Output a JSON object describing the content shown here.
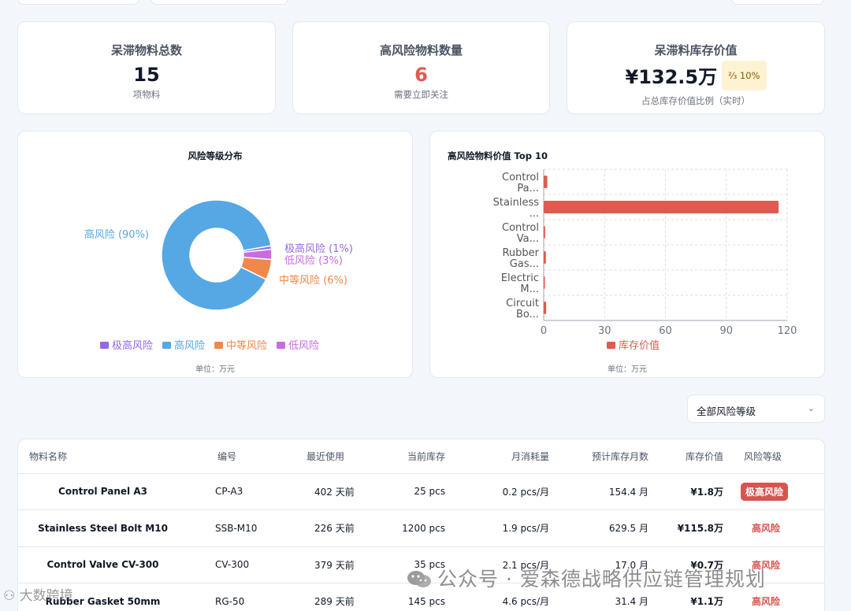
{
  "stats": [
    {
      "title": "呆滞物料总数",
      "value": "15",
      "sub": "项物料"
    },
    {
      "title": "高风险物料数量",
      "value": "6",
      "sub": "需要立即关注"
    },
    {
      "title": "呆滞料库存价值",
      "value": "¥132.5万",
      "badge": "⅔ 10%",
      "sub": "占总库存价值比例（实时）"
    }
  ],
  "colors": {
    "accent_red": "#e05a4f",
    "donut_high": "#55a8e3",
    "donut_mid": "#f0884b",
    "donut_low": "#c86ce0",
    "donut_xhigh": "#9468e6"
  },
  "chart_data": [
    {
      "type": "pie",
      "title": "风险等级分布",
      "unit": "单位：万元",
      "slices": [
        {
          "name": "极高风险",
          "value": 1,
          "label": "极高风险 (1%)",
          "color": "#9468e6"
        },
        {
          "name": "高风险",
          "value": 90,
          "label": "高风险 (90%)",
          "color": "#55a8e3"
        },
        {
          "name": "中等风险",
          "value": 6,
          "label": "中等风险 (6%)",
          "color": "#f0884b"
        },
        {
          "name": "低风险",
          "value": 3,
          "label": "低风险 (3%)",
          "color": "#c86ce0"
        }
      ],
      "legend": [
        "极高风险",
        "高风险",
        "中等风险",
        "低风险"
      ],
      "legend_position": "bottom"
    },
    {
      "type": "bar",
      "orientation": "horizontal",
      "title": "高风险物料价值 Top 10",
      "unit": "单位：万元",
      "categories": [
        [
          "Control",
          "Pa..."
        ],
        [
          "Stainless",
          "..."
        ],
        [
          "Control",
          "Va..."
        ],
        [
          "Rubber",
          "Gas..."
        ],
        [
          "Electric",
          "M..."
        ],
        [
          "Circuit",
          "Bo..."
        ]
      ],
      "series": [
        {
          "name": "库存价值",
          "values": [
            1.8,
            115.8,
            0.7,
            1.1,
            0.3,
            1.2
          ],
          "color": "#e05a4f"
        }
      ],
      "xlim": [
        0,
        120
      ],
      "xticks": [
        "0",
        "30",
        "60",
        "90",
        "120"
      ],
      "grid": true,
      "legend_position": "bottom"
    }
  ],
  "filter": {
    "label": "全部风险等级",
    "icon": "chevron-down-icon"
  },
  "table": {
    "headers": [
      "物料名称",
      "编号",
      "最近使用",
      "当前库存",
      "月消耗量",
      "预计库存月数",
      "库存价值",
      "风险等级"
    ],
    "rows": [
      {
        "name": "Control Panel A3",
        "code": "CP-A3",
        "last": "402 天前",
        "stock": "25 pcs",
        "monthly": "0.2 pcs/月",
        "months": "154.4 月",
        "value": "¥1.8万",
        "risk": "极高风险",
        "pill": true
      },
      {
        "name": "Stainless Steel Bolt M10",
        "code": "SSB-M10",
        "last": "226 天前",
        "stock": "1200 pcs",
        "monthly": "1.9 pcs/月",
        "months": "629.5 月",
        "value": "¥115.8万",
        "risk": "高风险",
        "pill": false
      },
      {
        "name": "Control Valve CV-300",
        "code": "CV-300",
        "last": "379 天前",
        "stock": "35 pcs",
        "monthly": "2.1 pcs/月",
        "months": "17.0 月",
        "value": "¥0.7万",
        "risk": "高风险",
        "pill": false
      },
      {
        "name": "Rubber Gasket 50mm",
        "code": "RG-50",
        "last": "289 天前",
        "stock": "145 pcs",
        "monthly": "4.6 pcs/月",
        "months": "31.4 月",
        "value": "¥1.1万",
        "risk": "高风险",
        "pill": false
      }
    ]
  },
  "watermark": {
    "main": "公众号 · 爱森德战略供应链管理规划",
    "corner": "大数跨境"
  }
}
